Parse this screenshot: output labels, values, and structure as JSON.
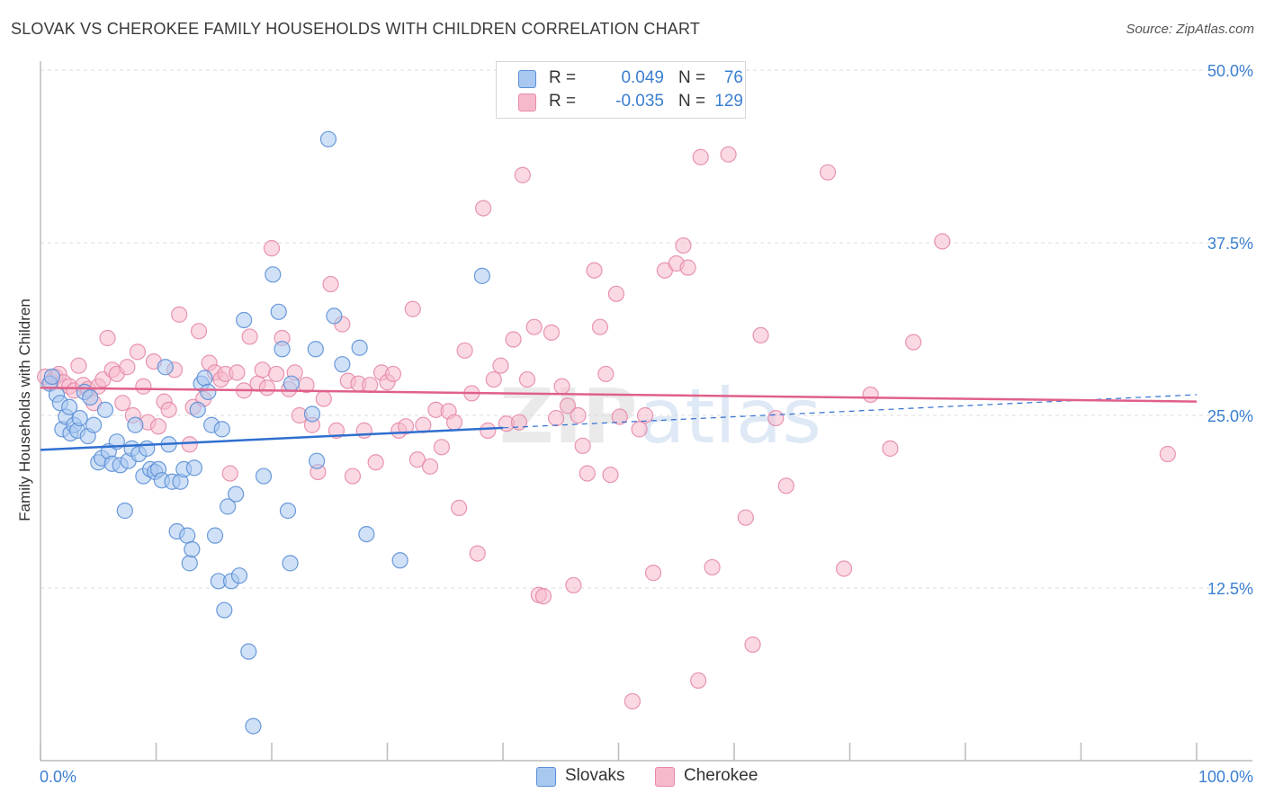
{
  "title": "SLOVAK VS CHEROKEE FAMILY HOUSEHOLDS WITH CHILDREN CORRELATION CHART",
  "source": "Source: ZipAtlas.com",
  "watermark": "ZIPatlas",
  "legend_box": {
    "rows": [
      {
        "r_label": "R =",
        "r_value": "0.049",
        "n_label": "N =",
        "n_value": "76",
        "color": "#a9c8f0"
      },
      {
        "r_label": "R =",
        "r_value": "-0.035",
        "n_label": "N =",
        "n_value": "129",
        "color": "#f6b9cc"
      }
    ]
  },
  "bottom_legend": [
    {
      "label": "Slovaks",
      "color": "#a9c8f0"
    },
    {
      "label": "Cherokee",
      "color": "#f6b9cc"
    }
  ],
  "chart_data": {
    "type": "scatter",
    "title": "SLOVAK VS CHEROKEE FAMILY HOUSEHOLDS WITH CHILDREN CORRELATION CHART",
    "xlabel": "",
    "ylabel": "Family Households with Children",
    "xlim": [
      0,
      100
    ],
    "ylim": [
      0,
      50
    ],
    "x_tick_labels": [
      "0.0%",
      "100.0%"
    ],
    "y_ticks": [
      12.5,
      25.0,
      37.5,
      50.0
    ],
    "y_tick_labels": [
      "12.5%",
      "25.0%",
      "37.5%",
      "50.0%"
    ],
    "grid": "horizontal dashed",
    "colors": {
      "slovaks_fill": "#a9c8f0",
      "slovaks_stroke": "#5b8fd6",
      "slovaks_line": "#2f6fd0",
      "cherokee_fill": "#f6b9cc",
      "cherokee_stroke": "#e58aa8",
      "cherokee_line": "#e0608a",
      "tick_label": "#3b7fd0"
    },
    "series": [
      {
        "name": "Slovaks",
        "trend": {
          "x": [
            0,
            40
          ],
          "y": [
            22.5,
            24.1
          ],
          "dashed_extension": {
            "x": [
              40,
              100
            ],
            "y": [
              24.1,
              26.5
            ]
          }
        },
        "points": [
          [
            0.8,
            27.3
          ],
          [
            1.0,
            27.8
          ],
          [
            1.4,
            26.5
          ],
          [
            1.7,
            25.9
          ],
          [
            1.9,
            24.0
          ],
          [
            2.2,
            24.9
          ],
          [
            2.5,
            25.6
          ],
          [
            2.6,
            23.7
          ],
          [
            2.9,
            24.3
          ],
          [
            3.2,
            23.9
          ],
          [
            3.4,
            24.8
          ],
          [
            3.8,
            26.7
          ],
          [
            4.1,
            23.5
          ],
          [
            4.3,
            26.3
          ],
          [
            4.6,
            24.3
          ],
          [
            5.0,
            21.6
          ],
          [
            5.3,
            21.9
          ],
          [
            5.6,
            25.4
          ],
          [
            5.9,
            22.4
          ],
          [
            6.2,
            21.5
          ],
          [
            6.6,
            23.1
          ],
          [
            6.9,
            21.4
          ],
          [
            7.3,
            18.1
          ],
          [
            7.6,
            21.7
          ],
          [
            7.9,
            22.6
          ],
          [
            8.2,
            24.3
          ],
          [
            8.5,
            22.2
          ],
          [
            8.9,
            20.6
          ],
          [
            9.2,
            22.6
          ],
          [
            9.5,
            21.1
          ],
          [
            9.9,
            20.9
          ],
          [
            10.2,
            21.1
          ],
          [
            10.5,
            20.3
          ],
          [
            10.8,
            28.5
          ],
          [
            11.1,
            22.9
          ],
          [
            11.4,
            20.2
          ],
          [
            11.8,
            16.6
          ],
          [
            12.1,
            20.2
          ],
          [
            12.4,
            21.1
          ],
          [
            12.7,
            16.3
          ],
          [
            12.9,
            14.3
          ],
          [
            13.1,
            15.3
          ],
          [
            13.3,
            21.2
          ],
          [
            13.6,
            25.4
          ],
          [
            13.9,
            27.3
          ],
          [
            14.2,
            27.7
          ],
          [
            14.5,
            26.7
          ],
          [
            14.8,
            24.3
          ],
          [
            15.1,
            16.3
          ],
          [
            15.4,
            13.0
          ],
          [
            15.7,
            24.0
          ],
          [
            15.9,
            10.9
          ],
          [
            16.2,
            18.4
          ],
          [
            16.5,
            13.0
          ],
          [
            16.9,
            19.3
          ],
          [
            17.2,
            13.4
          ],
          [
            17.6,
            31.9
          ],
          [
            18.0,
            7.9
          ],
          [
            18.4,
            2.5
          ],
          [
            19.3,
            20.6
          ],
          [
            20.1,
            35.2
          ],
          [
            20.6,
            32.5
          ],
          [
            20.9,
            29.8
          ],
          [
            21.4,
            18.1
          ],
          [
            21.6,
            14.3
          ],
          [
            21.7,
            27.3
          ],
          [
            23.5,
            25.1
          ],
          [
            23.9,
            21.7
          ],
          [
            23.8,
            29.8
          ],
          [
            24.9,
            45.0
          ],
          [
            25.4,
            32.2
          ],
          [
            26.1,
            28.7
          ],
          [
            27.6,
            29.9
          ],
          [
            28.2,
            16.4
          ],
          [
            31.1,
            14.5
          ],
          [
            38.2,
            35.1
          ]
        ]
      },
      {
        "name": "Cherokee",
        "trend": {
          "x": [
            0,
            100
          ],
          "y": [
            27.0,
            26.0
          ]
        },
        "points": [
          [
            0.4,
            27.8
          ],
          [
            0.9,
            27.4
          ],
          [
            1.3,
            27.8
          ],
          [
            1.6,
            28.0
          ],
          [
            2.0,
            27.4
          ],
          [
            2.5,
            27.1
          ],
          [
            2.9,
            26.8
          ],
          [
            3.3,
            28.6
          ],
          [
            3.7,
            27.2
          ],
          [
            4.1,
            26.9
          ],
          [
            4.6,
            25.9
          ],
          [
            5.0,
            27.1
          ],
          [
            5.4,
            27.6
          ],
          [
            5.8,
            30.6
          ],
          [
            6.2,
            28.3
          ],
          [
            6.6,
            28.0
          ],
          [
            7.1,
            25.9
          ],
          [
            7.5,
            28.5
          ],
          [
            8.0,
            25.0
          ],
          [
            8.4,
            29.6
          ],
          [
            8.9,
            27.1
          ],
          [
            9.3,
            24.5
          ],
          [
            9.8,
            28.9
          ],
          [
            10.2,
            24.2
          ],
          [
            10.7,
            26.0
          ],
          [
            11.1,
            25.4
          ],
          [
            11.6,
            28.3
          ],
          [
            12.0,
            32.3
          ],
          [
            12.9,
            22.9
          ],
          [
            13.2,
            25.6
          ],
          [
            13.7,
            31.1
          ],
          [
            14.1,
            26.2
          ],
          [
            14.6,
            28.8
          ],
          [
            15.1,
            28.1
          ],
          [
            15.6,
            27.6
          ],
          [
            16.0,
            28.0
          ],
          [
            16.4,
            20.8
          ],
          [
            17.0,
            28.1
          ],
          [
            17.6,
            26.8
          ],
          [
            18.1,
            30.7
          ],
          [
            18.8,
            27.3
          ],
          [
            19.2,
            28.3
          ],
          [
            19.6,
            27.0
          ],
          [
            20.0,
            37.1
          ],
          [
            20.4,
            28.0
          ],
          [
            20.9,
            30.6
          ],
          [
            21.5,
            26.9
          ],
          [
            22.0,
            28.1
          ],
          [
            22.4,
            25.0
          ],
          [
            23.0,
            27.2
          ],
          [
            23.5,
            24.3
          ],
          [
            24.0,
            20.9
          ],
          [
            24.5,
            26.2
          ],
          [
            25.1,
            34.5
          ],
          [
            25.6,
            23.9
          ],
          [
            26.1,
            31.6
          ],
          [
            26.6,
            27.5
          ],
          [
            27.0,
            20.6
          ],
          [
            27.5,
            27.3
          ],
          [
            28.0,
            23.9
          ],
          [
            28.5,
            27.2
          ],
          [
            29.0,
            21.6
          ],
          [
            29.5,
            28.1
          ],
          [
            30.0,
            27.4
          ],
          [
            30.5,
            28.0
          ],
          [
            31.0,
            23.9
          ],
          [
            31.6,
            24.2
          ],
          [
            32.2,
            32.7
          ],
          [
            32.6,
            21.8
          ],
          [
            33.1,
            24.3
          ],
          [
            33.7,
            21.3
          ],
          [
            34.2,
            25.4
          ],
          [
            34.7,
            22.7
          ],
          [
            35.3,
            25.3
          ],
          [
            35.8,
            24.5
          ],
          [
            36.2,
            18.3
          ],
          [
            36.7,
            29.7
          ],
          [
            37.3,
            26.6
          ],
          [
            37.8,
            15.0
          ],
          [
            38.3,
            40.0
          ],
          [
            38.7,
            23.9
          ],
          [
            39.2,
            27.6
          ],
          [
            39.8,
            28.6
          ],
          [
            40.3,
            24.4
          ],
          [
            40.9,
            30.5
          ],
          [
            41.4,
            24.5
          ],
          [
            41.7,
            42.4
          ],
          [
            42.1,
            27.6
          ],
          [
            42.7,
            31.4
          ],
          [
            43.1,
            12.0
          ],
          [
            43.5,
            11.9
          ],
          [
            44.2,
            31.0
          ],
          [
            44.6,
            24.8
          ],
          [
            45.1,
            27.1
          ],
          [
            45.6,
            25.7
          ],
          [
            46.1,
            12.7
          ],
          [
            46.5,
            25.0
          ],
          [
            46.9,
            22.8
          ],
          [
            47.3,
            20.8
          ],
          [
            47.9,
            35.5
          ],
          [
            48.4,
            31.4
          ],
          [
            48.9,
            28.0
          ],
          [
            49.3,
            20.7
          ],
          [
            49.8,
            33.8
          ],
          [
            50.1,
            24.9
          ],
          [
            51.2,
            4.3
          ],
          [
            51.8,
            24.0
          ],
          [
            52.3,
            25.0
          ],
          [
            53.0,
            13.6
          ],
          [
            54.0,
            35.5
          ],
          [
            55.0,
            36.0
          ],
          [
            55.6,
            37.3
          ],
          [
            56.0,
            35.7
          ],
          [
            56.9,
            5.8
          ],
          [
            57.1,
            43.7
          ],
          [
            58.1,
            14.0
          ],
          [
            59.5,
            43.9
          ],
          [
            61.0,
            17.6
          ],
          [
            61.6,
            8.4
          ],
          [
            62.3,
            30.8
          ],
          [
            63.6,
            24.8
          ],
          [
            64.5,
            19.9
          ],
          [
            68.1,
            42.6
          ],
          [
            69.5,
            13.9
          ],
          [
            71.8,
            26.5
          ],
          [
            73.5,
            22.6
          ],
          [
            75.5,
            30.3
          ],
          [
            78.0,
            37.6
          ],
          [
            97.5,
            22.2
          ]
        ]
      }
    ]
  }
}
